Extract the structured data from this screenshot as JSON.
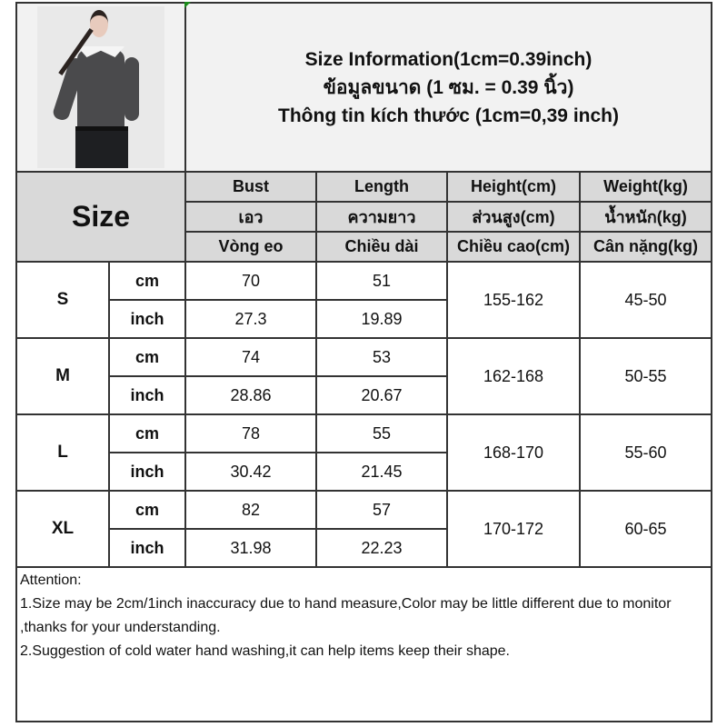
{
  "title_lines": [
    "Size Information(1cm=0.39inch)",
    "ข้อมูลขนาด (1 ซม. = 0.39 นิ้ว)",
    "Thông tin kích thước (1cm=0,39 inch)"
  ],
  "size_header": "Size",
  "columns": [
    {
      "en": "Bust",
      "th": "เอว",
      "vi": "Vòng eo"
    },
    {
      "en": "Length",
      "th": "ความยาว",
      "vi": "Chiều dài"
    },
    {
      "en": "Height(cm)",
      "th": "ส่วนสูง(cm)",
      "vi": "Chiều cao(cm)"
    },
    {
      "en": "Weight(kg)",
      "th": "น้ำหนัก(kg)",
      "vi": "Cân nặng(kg)"
    }
  ],
  "units": {
    "cm": "cm",
    "inch": "inch"
  },
  "rows": [
    {
      "size": "S",
      "bust_cm": "70",
      "length_cm": "51",
      "bust_inch": "27.3",
      "length_inch": "19.89",
      "height": "155-162",
      "weight": "45-50"
    },
    {
      "size": "M",
      "bust_cm": "74",
      "length_cm": "53",
      "bust_inch": "28.86",
      "length_inch": "20.67",
      "height": "162-168",
      "weight": "50-55"
    },
    {
      "size": "L",
      "bust_cm": "78",
      "length_cm": "55",
      "bust_inch": "30.42",
      "length_inch": "21.45",
      "height": "168-170",
      "weight": "55-60"
    },
    {
      "size": "XL",
      "bust_cm": "82",
      "length_cm": "57",
      "bust_inch": "31.98",
      "length_inch": "22.23",
      "height": "170-172",
      "weight": "60-65"
    }
  ],
  "notes": {
    "heading": "Attention:",
    "line1": "1.Size may be 2cm/1inch inaccuracy due to hand measure,Color may be little different due to monitor ,thanks for your understanding.",
    "line2": "2.Suggestion of cold water hand washing,it can help items keep their shape."
  },
  "colors": {
    "header_bg": "#d9d9d9",
    "title_bg": "#f2f2f2",
    "border": "#333333"
  }
}
